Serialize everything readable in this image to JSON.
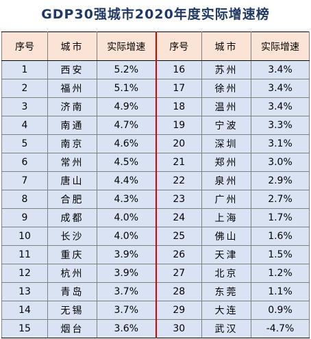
{
  "title": "GDP30强城市2020年度实际增速榜",
  "headers": [
    "序号",
    "城市",
    "实际增速",
    "序号",
    "城市",
    "实际增速"
  ],
  "left_rows": [
    {
      "rank": "1",
      "city": "西安",
      "growth": "5.2%"
    },
    {
      "rank": "2",
      "city": "福州",
      "growth": "5.1%"
    },
    {
      "rank": "3",
      "city": "济南",
      "growth": "4.9%"
    },
    {
      "rank": "4",
      "city": "南通",
      "growth": "4.7%"
    },
    {
      "rank": "5",
      "city": "南京",
      "growth": "4.6%"
    },
    {
      "rank": "6",
      "city": "常州",
      "growth": "4.5%"
    },
    {
      "rank": "7",
      "city": "唐山",
      "growth": "4.4%"
    },
    {
      "rank": "8",
      "city": "合肥",
      "growth": "4.3%"
    },
    {
      "rank": "9",
      "city": "成都",
      "growth": "4.0%"
    },
    {
      "rank": "10",
      "city": "长沙",
      "growth": "4.0%"
    },
    {
      "rank": "11",
      "city": "重庆",
      "growth": "3.9%"
    },
    {
      "rank": "12",
      "city": "杭州",
      "growth": "3.9%"
    },
    {
      "rank": "13",
      "city": "青岛",
      "growth": "3.7%"
    },
    {
      "rank": "14",
      "city": "无锡",
      "growth": "3.7%"
    },
    {
      "rank": "15",
      "city": "烟台",
      "growth": "3.6%"
    }
  ],
  "right_rows": [
    {
      "rank": "16",
      "city": "苏州",
      "growth": "3.4%"
    },
    {
      "rank": "17",
      "city": "徐州",
      "growth": "3.4%"
    },
    {
      "rank": "18",
      "city": "温州",
      "growth": "3.4%"
    },
    {
      "rank": "19",
      "city": "宁波",
      "growth": "3.3%"
    },
    {
      "rank": "20",
      "city": "深圳",
      "growth": "3.1%"
    },
    {
      "rank": "21",
      "city": "郑州",
      "growth": "3.0%"
    },
    {
      "rank": "22",
      "city": "泉州",
      "growth": "2.9%"
    },
    {
      "rank": "23",
      "city": "广州",
      "growth": "2.7%"
    },
    {
      "rank": "24",
      "city": "上海",
      "growth": "1.7%"
    },
    {
      "rank": "25",
      "city": "佛山",
      "growth": "1.6%"
    },
    {
      "rank": "26",
      "city": "天津",
      "growth": "1.5%"
    },
    {
      "rank": "27",
      "city": "北京",
      "growth": "1.2%"
    },
    {
      "rank": "28",
      "city": "东莞",
      "growth": "1.1%"
    },
    {
      "rank": "29",
      "city": "大连",
      "growth": "0.9%"
    },
    {
      "rank": "30",
      "city": "武汉",
      "growth": "-4.7%"
    }
  ],
  "colors": {
    "header_bg": "#fbe4d5",
    "row_bg": "#dae3f3",
    "divider": "#e00000",
    "title": "#1f3864"
  }
}
